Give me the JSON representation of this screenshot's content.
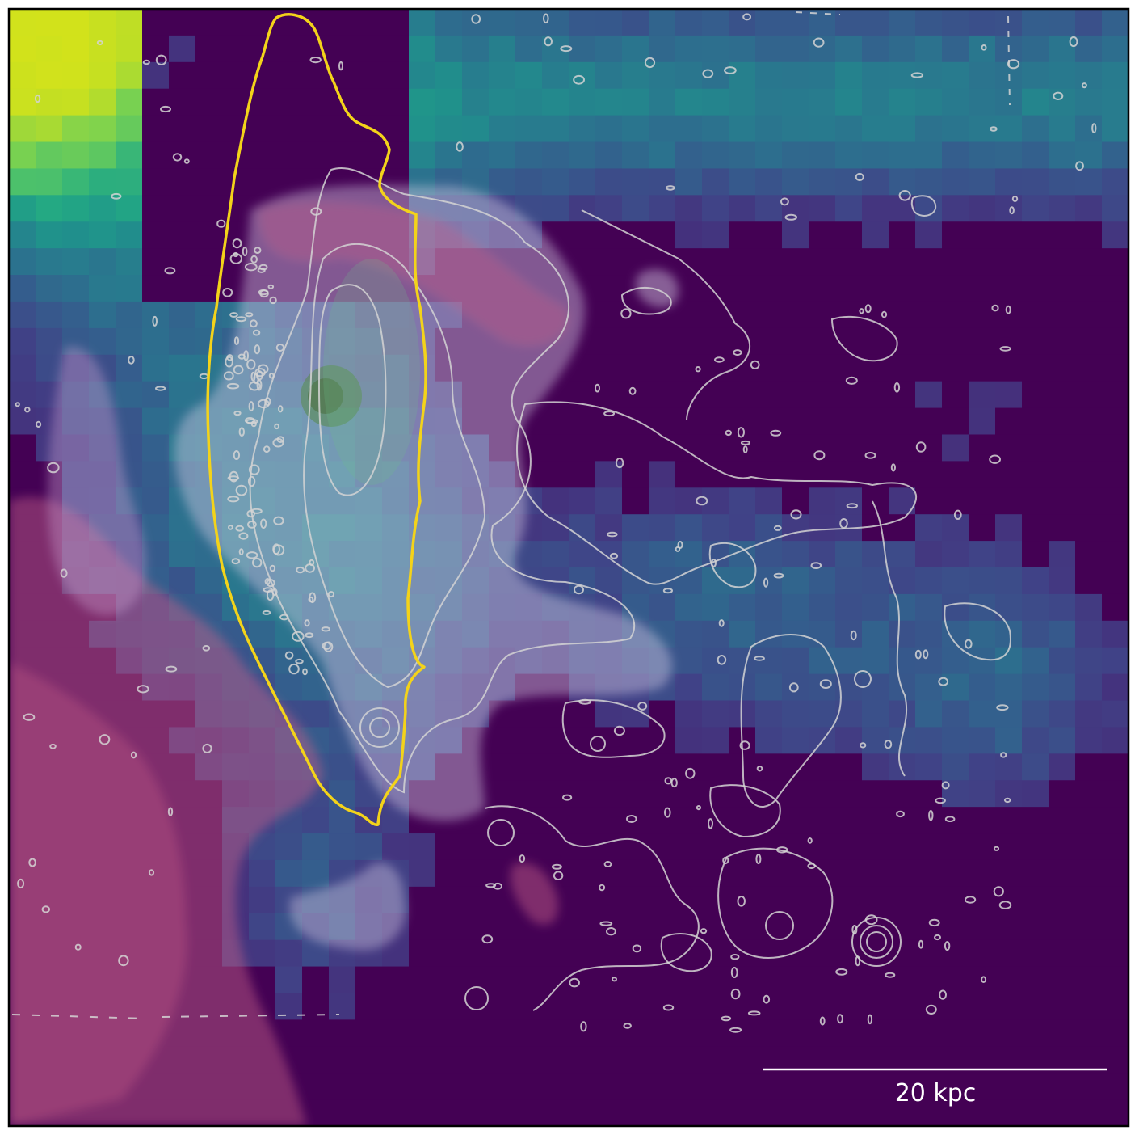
{
  "scalebar": {
    "label": "20 kpc"
  },
  "colors": {
    "background_low": "#440154",
    "background_high": "#d2e21b",
    "region_outline": "#f3d31a",
    "contours": "#d4d4d4",
    "overlay_pink": "#c2557f",
    "overlay_white": "#e6e6f0",
    "scalebar": "#ffffff"
  }
}
